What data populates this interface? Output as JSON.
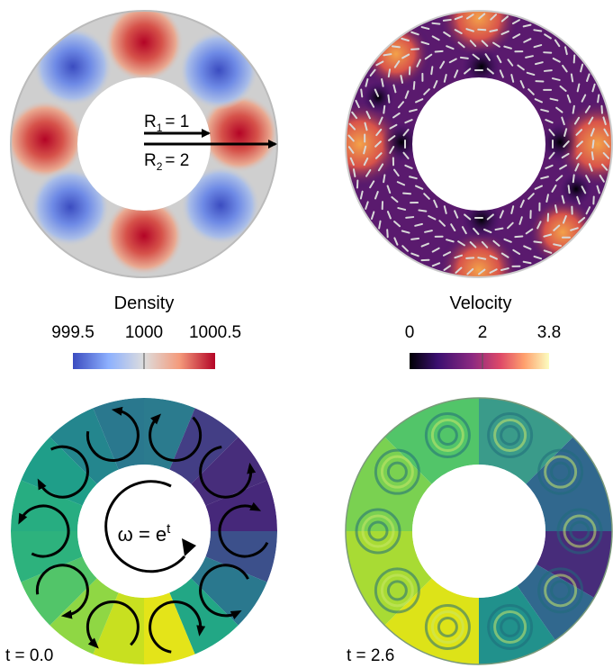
{
  "panels": {
    "density": {
      "r1_label": "R",
      "r1_sub": "1",
      "r1_value": "= 1",
      "r2_label": "R",
      "r2_sub": "2",
      "r2_value": "= 2"
    },
    "density_colorbar": {
      "title": "Density",
      "ticks": [
        "999.5",
        "1000",
        "1000.5"
      ],
      "colors": [
        "#3b4cc0",
        "#dddddd",
        "#b40426"
      ]
    },
    "velocity_colorbar": {
      "title": "Velocity",
      "ticks": [
        "0",
        "2",
        "3.8"
      ],
      "colors": [
        "#000004",
        "#3b0f70",
        "#8c2981",
        "#de4968",
        "#fe9f6d",
        "#fcfdbf"
      ]
    },
    "tracer_initial": {
      "omega_label": "ω = e",
      "omega_sup": "t",
      "time_label": "t = 0.0"
    },
    "tracer_final": {
      "time_label": "t = 2.6"
    }
  }
}
